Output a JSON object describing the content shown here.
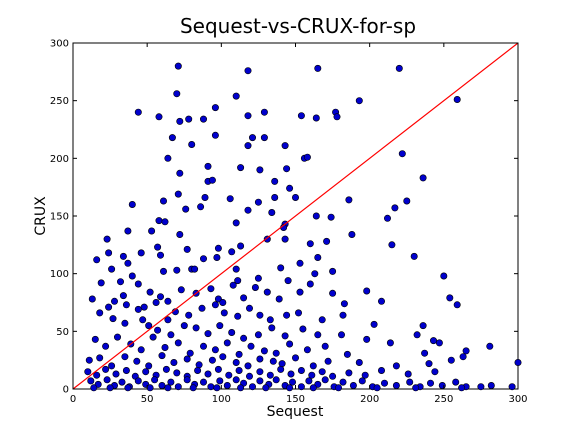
{
  "chart_data": {
    "type": "scatter",
    "title": "Sequest-vs-CRUX-for-sp",
    "xlabel": "Sequest",
    "ylabel": "CRUX",
    "xlim": [
      0,
      300
    ],
    "ylim": [
      0,
      300
    ],
    "xticks": [
      0,
      50,
      100,
      150,
      200,
      250,
      300
    ],
    "yticks": [
      0,
      50,
      100,
      150,
      200,
      250,
      300
    ],
    "grid": false,
    "reference_line": {
      "from": [
        0,
        0
      ],
      "to": [
        300,
        300
      ],
      "color": "#ff0000"
    },
    "point_color": "#0000cd",
    "points": [
      [
        71,
        280
      ],
      [
        118,
        276
      ],
      [
        165,
        278
      ],
      [
        220,
        278
      ],
      [
        259,
        251
      ],
      [
        193,
        250
      ],
      [
        70,
        256
      ],
      [
        110,
        254
      ],
      [
        96,
        244
      ],
      [
        44,
        240
      ],
      [
        58,
        236
      ],
      [
        72,
        232
      ],
      [
        78,
        234
      ],
      [
        88,
        234
      ],
      [
        118,
        237
      ],
      [
        129,
        240
      ],
      [
        154,
        237
      ],
      [
        164,
        235
      ],
      [
        177,
        240
      ],
      [
        178,
        236
      ],
      [
        67,
        218
      ],
      [
        80,
        212
      ],
      [
        96,
        220
      ],
      [
        121,
        218
      ],
      [
        129,
        218
      ],
      [
        143,
        211
      ],
      [
        156,
        200
      ],
      [
        158,
        201
      ],
      [
        222,
        204
      ],
      [
        118,
        211
      ],
      [
        64,
        200
      ],
      [
        72,
        187
      ],
      [
        71,
        169
      ],
      [
        91,
        180
      ],
      [
        94,
        181
      ],
      [
        91,
        193
      ],
      [
        113,
        192
      ],
      [
        126,
        190
      ],
      [
        136,
        180
      ],
      [
        144,
        191
      ],
      [
        136,
        166
      ],
      [
        146,
        174
      ],
      [
        150,
        166
      ],
      [
        186,
        164
      ],
      [
        40,
        160
      ],
      [
        61,
        163
      ],
      [
        58,
        146
      ],
      [
        76,
        156
      ],
      [
        86,
        158
      ],
      [
        89,
        166
      ],
      [
        106,
        165
      ],
      [
        110,
        144
      ],
      [
        118,
        155
      ],
      [
        125,
        162
      ],
      [
        134,
        153
      ],
      [
        143,
        143
      ],
      [
        164,
        150
      ],
      [
        174,
        149
      ],
      [
        212,
        148
      ],
      [
        217,
        157
      ],
      [
        225,
        163
      ],
      [
        236,
        183
      ],
      [
        23,
        130
      ],
      [
        37,
        137
      ],
      [
        53,
        137
      ],
      [
        62,
        145
      ],
      [
        57,
        123
      ],
      [
        72,
        134
      ],
      [
        77,
        121
      ],
      [
        88,
        113
      ],
      [
        98,
        122
      ],
      [
        113,
        124
      ],
      [
        131,
        130
      ],
      [
        142,
        140
      ],
      [
        143,
        130
      ],
      [
        160,
        126
      ],
      [
        171,
        128
      ],
      [
        188,
        134
      ],
      [
        16,
        112
      ],
      [
        24,
        118
      ],
      [
        34,
        115
      ],
      [
        37,
        109
      ],
      [
        26,
        104
      ],
      [
        46,
        118
      ],
      [
        59,
        116
      ],
      [
        61,
        102
      ],
      [
        70,
        103
      ],
      [
        80,
        104
      ],
      [
        82,
        104
      ],
      [
        97,
        114
      ],
      [
        107,
        119
      ],
      [
        110,
        104
      ],
      [
        111,
        94
      ],
      [
        125,
        96
      ],
      [
        140,
        105
      ],
      [
        145,
        94
      ],
      [
        153,
        109
      ],
      [
        163,
        100
      ],
      [
        165,
        114
      ],
      [
        175,
        102
      ],
      [
        215,
        125
      ],
      [
        250,
        98
      ],
      [
        254,
        79
      ],
      [
        259,
        73
      ],
      [
        230,
        115
      ],
      [
        19,
        92
      ],
      [
        32,
        93
      ],
      [
        40,
        98
      ],
      [
        44,
        91
      ],
      [
        34,
        81
      ],
      [
        52,
        84
      ],
      [
        59,
        80
      ],
      [
        64,
        76
      ],
      [
        73,
        86
      ],
      [
        83,
        83
      ],
      [
        93,
        87
      ],
      [
        98,
        78
      ],
      [
        101,
        75
      ],
      [
        108,
        90
      ],
      [
        115,
        79
      ],
      [
        123,
        88
      ],
      [
        131,
        84
      ],
      [
        139,
        78
      ],
      [
        153,
        84
      ],
      [
        160,
        91
      ],
      [
        175,
        83
      ],
      [
        183,
        74
      ],
      [
        198,
        85
      ],
      [
        13,
        78
      ],
      [
        24,
        71
      ],
      [
        28,
        76
      ],
      [
        36,
        73
      ],
      [
        44,
        69
      ],
      [
        48,
        71
      ],
      [
        56,
        75
      ],
      [
        64,
        60
      ],
      [
        69,
        67
      ],
      [
        78,
        64
      ],
      [
        87,
        70
      ],
      [
        96,
        73
      ],
      [
        102,
        66
      ],
      [
        111,
        63
      ],
      [
        119,
        70
      ],
      [
        126,
        64
      ],
      [
        133,
        60
      ],
      [
        144,
        64
      ],
      [
        152,
        66
      ],
      [
        168,
        60
      ],
      [
        182,
        64
      ],
      [
        203,
        56
      ],
      [
        208,
        76
      ],
      [
        236,
        55
      ],
      [
        18,
        66
      ],
      [
        27,
        61
      ],
      [
        35,
        57
      ],
      [
        47,
        60
      ],
      [
        51,
        55
      ],
      [
        57,
        51
      ],
      [
        66,
        47
      ],
      [
        75,
        55
      ],
      [
        83,
        53
      ],
      [
        91,
        48
      ],
      [
        99,
        55
      ],
      [
        107,
        49
      ],
      [
        115,
        44
      ],
      [
        125,
        47
      ],
      [
        134,
        53
      ],
      [
        143,
        46
      ],
      [
        155,
        52
      ],
      [
        165,
        47
      ],
      [
        181,
        47
      ],
      [
        198,
        43
      ],
      [
        232,
        47
      ],
      [
        243,
        42
      ],
      [
        15,
        43
      ],
      [
        22,
        37
      ],
      [
        30,
        45
      ],
      [
        39,
        39
      ],
      [
        46,
        34
      ],
      [
        54,
        45
      ],
      [
        62,
        36
      ],
      [
        71,
        40
      ],
      [
        79,
        31
      ],
      [
        88,
        37
      ],
      [
        96,
        34
      ],
      [
        104,
        40
      ],
      [
        112,
        30
      ],
      [
        120,
        37
      ],
      [
        129,
        33
      ],
      [
        137,
        31
      ],
      [
        146,
        39
      ],
      [
        158,
        34
      ],
      [
        170,
        37
      ],
      [
        185,
        30
      ],
      [
        214,
        40
      ],
      [
        237,
        31
      ],
      [
        247,
        40
      ],
      [
        265,
        33
      ],
      [
        281,
        37
      ],
      [
        11,
        25
      ],
      [
        18,
        27
      ],
      [
        26,
        20
      ],
      [
        35,
        28
      ],
      [
        43,
        24
      ],
      [
        51,
        20
      ],
      [
        60,
        29
      ],
      [
        68,
        23
      ],
      [
        77,
        26
      ],
      [
        85,
        21
      ],
      [
        94,
        25
      ],
      [
        101,
        28
      ],
      [
        110,
        23
      ],
      [
        118,
        20
      ],
      [
        126,
        26
      ],
      [
        135,
        24
      ],
      [
        141,
        22
      ],
      [
        150,
        27
      ],
      [
        162,
        20
      ],
      [
        172,
        24
      ],
      [
        193,
        23
      ],
      [
        218,
        20
      ],
      [
        240,
        22
      ],
      [
        255,
        25
      ],
      [
        263,
        28
      ],
      [
        300,
        23
      ],
      [
        10,
        15
      ],
      [
        16,
        12
      ],
      [
        22,
        17
      ],
      [
        29,
        13
      ],
      [
        36,
        16
      ],
      [
        42,
        11
      ],
      [
        49,
        15
      ],
      [
        56,
        12
      ],
      [
        63,
        17
      ],
      [
        70,
        14
      ],
      [
        77,
        11
      ],
      [
        84,
        16
      ],
      [
        91,
        13
      ],
      [
        98,
        17
      ],
      [
        105,
        12
      ],
      [
        112,
        16
      ],
      [
        119,
        11
      ],
      [
        126,
        15
      ],
      [
        133,
        12
      ],
      [
        140,
        17
      ],
      [
        147,
        13
      ],
      [
        154,
        16
      ],
      [
        161,
        12
      ],
      [
        168,
        15
      ],
      [
        175,
        11
      ],
      [
        186,
        14
      ],
      [
        197,
        12
      ],
      [
        208,
        16
      ],
      [
        226,
        13
      ],
      [
        244,
        15
      ],
      [
        12,
        7
      ],
      [
        17,
        4
      ],
      [
        23,
        8
      ],
      [
        28,
        3
      ],
      [
        33,
        6
      ],
      [
        38,
        2
      ],
      [
        44,
        7
      ],
      [
        49,
        4
      ],
      [
        55,
        8
      ],
      [
        60,
        3
      ],
      [
        66,
        6
      ],
      [
        71,
        2
      ],
      [
        77,
        8
      ],
      [
        82,
        4
      ],
      [
        88,
        6
      ],
      [
        93,
        2
      ],
      [
        99,
        7
      ],
      [
        104,
        3
      ],
      [
        110,
        8
      ],
      [
        115,
        5
      ],
      [
        121,
        2
      ],
      [
        126,
        7
      ],
      [
        132,
        4
      ],
      [
        137,
        8
      ],
      [
        143,
        3
      ],
      [
        148,
        6
      ],
      [
        154,
        2
      ],
      [
        159,
        7
      ],
      [
        165,
        4
      ],
      [
        170,
        8
      ],
      [
        176,
        2
      ],
      [
        182,
        6
      ],
      [
        189,
        3
      ],
      [
        195,
        7
      ],
      [
        202,
        2
      ],
      [
        210,
        5
      ],
      [
        218,
        3
      ],
      [
        227,
        6
      ],
      [
        234,
        2
      ],
      [
        241,
        5
      ],
      [
        249,
        3
      ],
      [
        258,
        6
      ],
      [
        265,
        2
      ],
      [
        275,
        2
      ],
      [
        282,
        3
      ],
      [
        296,
        2
      ],
      [
        14,
        1
      ],
      [
        25,
        1
      ],
      [
        37,
        1
      ],
      [
        52,
        1
      ],
      [
        64,
        1
      ],
      [
        81,
        1
      ],
      [
        97,
        1
      ],
      [
        113,
        1
      ],
      [
        130,
        1
      ],
      [
        146,
        1
      ],
      [
        162,
        1
      ],
      [
        179,
        1
      ],
      [
        205,
        1
      ],
      [
        231,
        1
      ],
      [
        262,
        1
      ]
    ]
  }
}
